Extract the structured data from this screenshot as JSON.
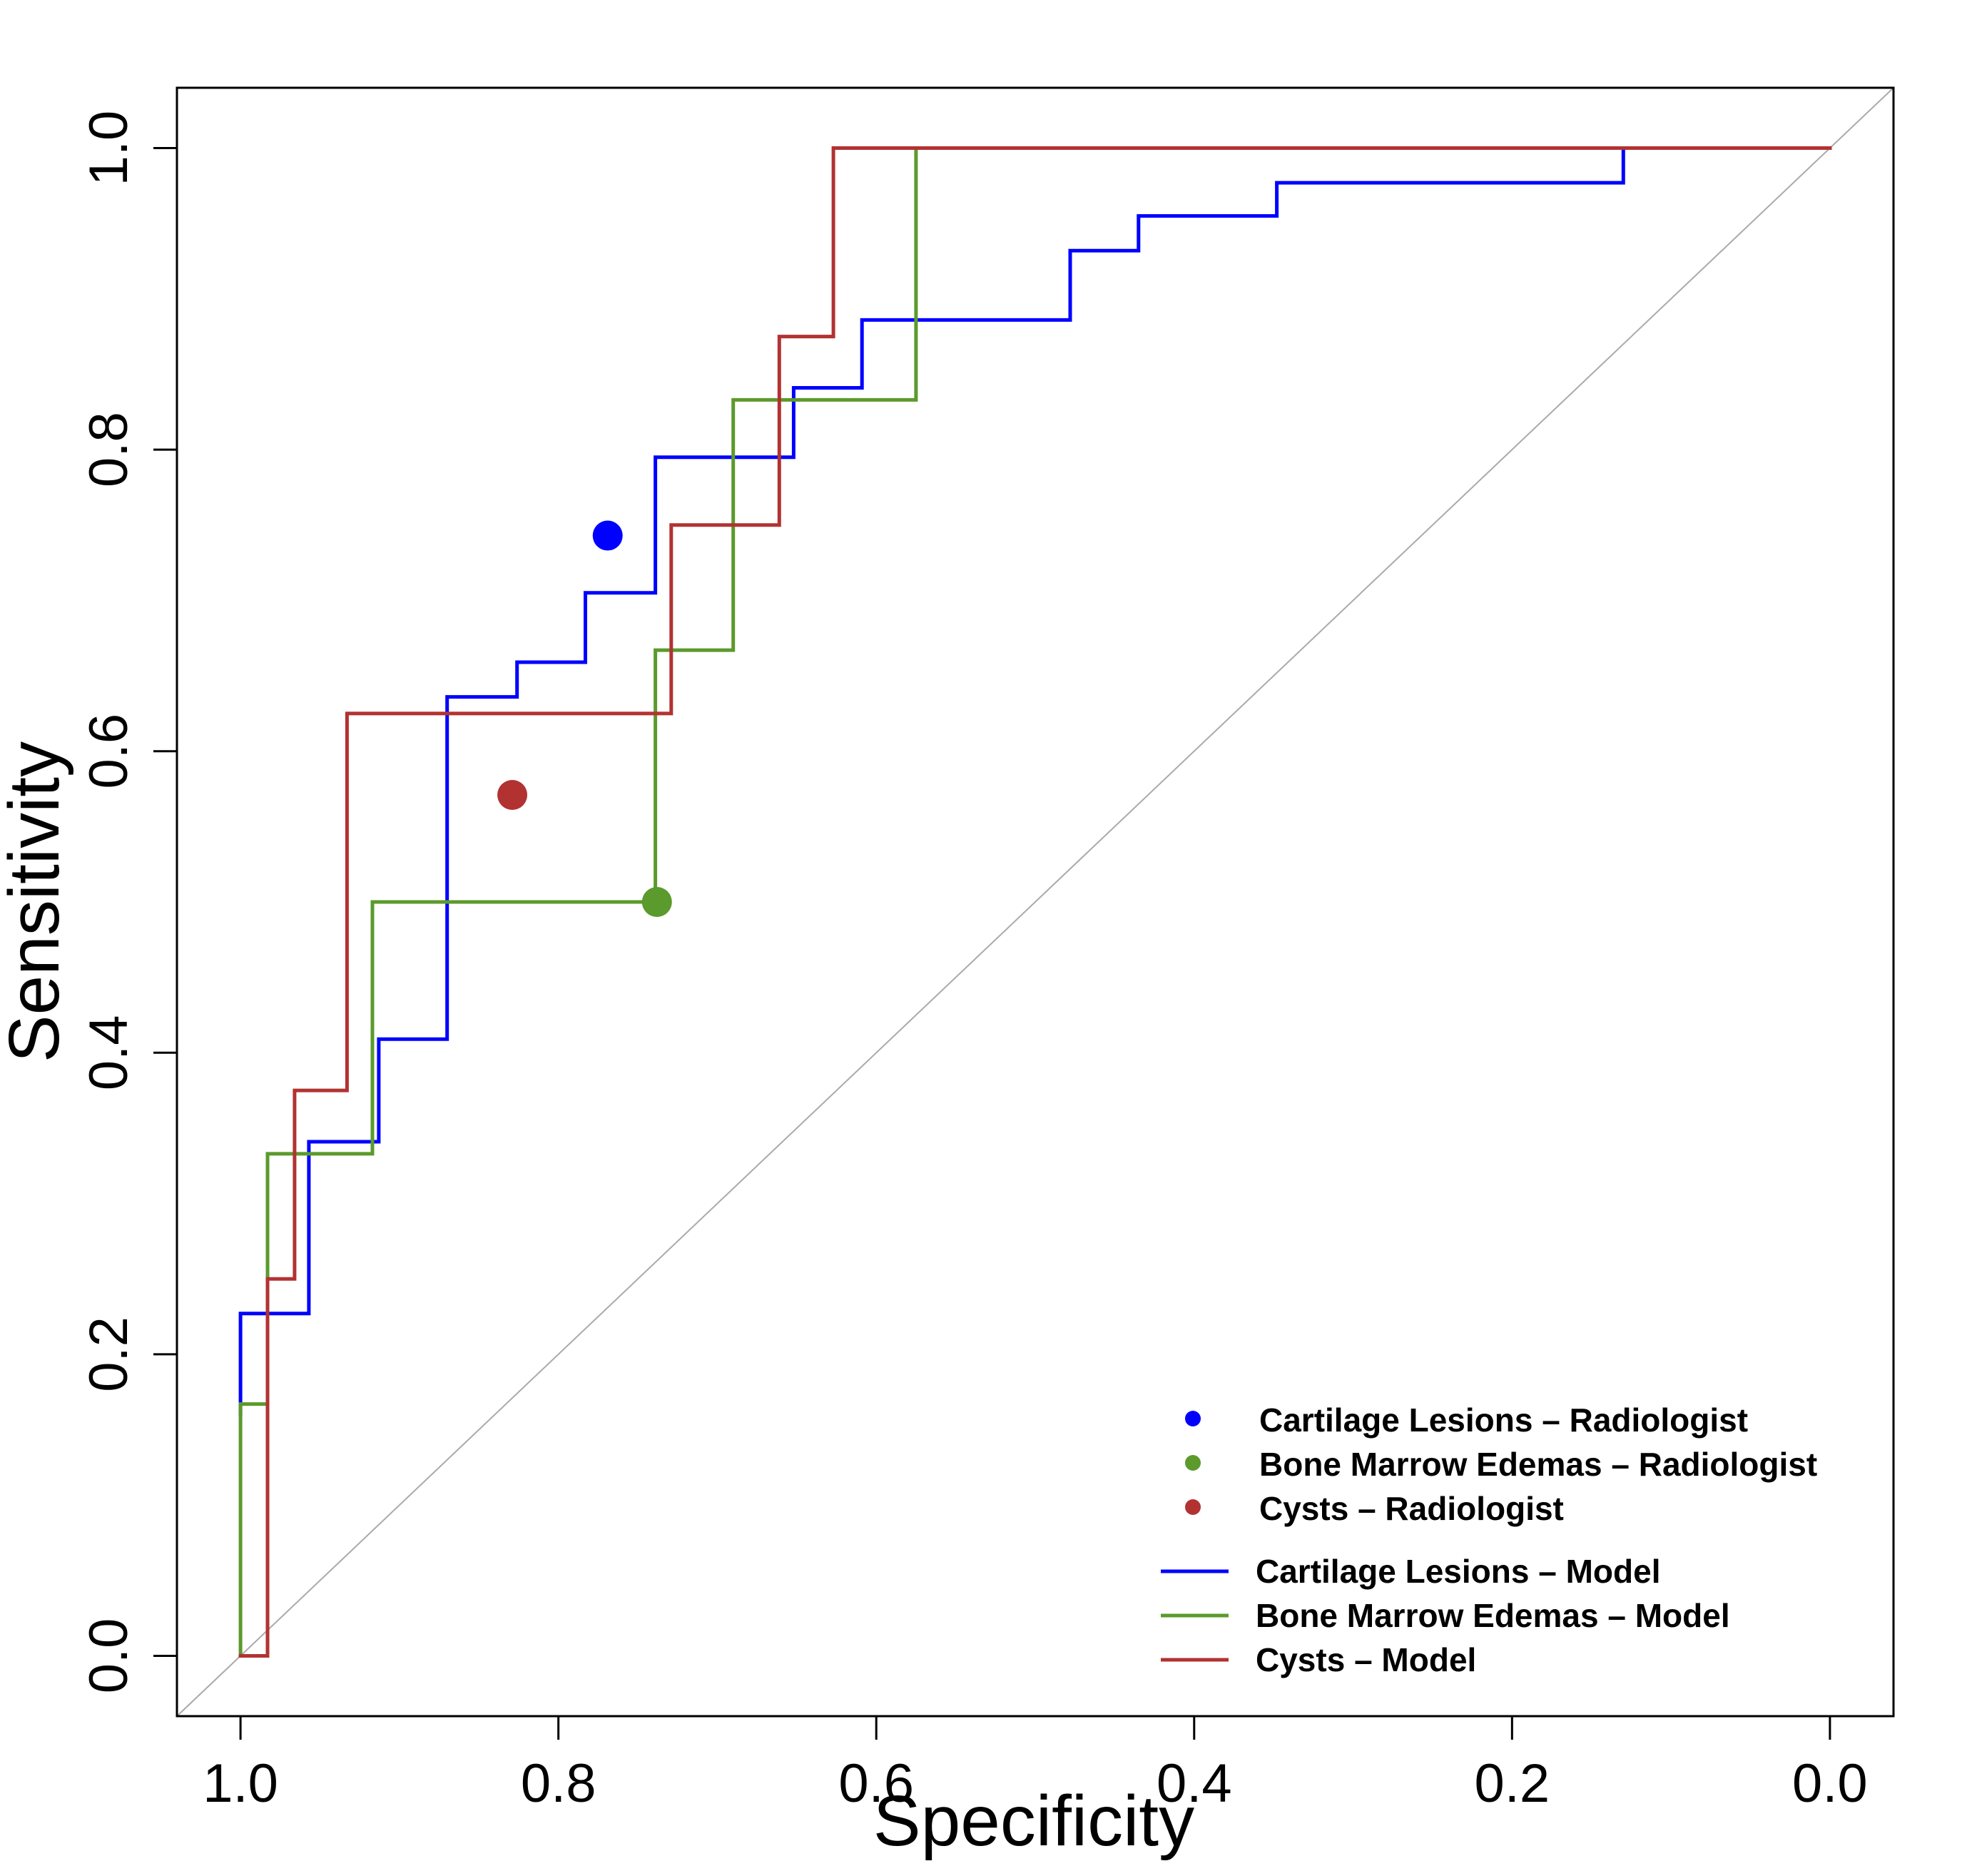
{
  "chart_data": {
    "type": "line",
    "title": "",
    "xlabel": "Specificity",
    "ylabel": "Sensitivity",
    "xlim": [
      1.04,
      -0.04
    ],
    "ylim": [
      -0.04,
      1.04
    ],
    "x_reversed": true,
    "x_ticks": [
      "1.0",
      "0.8",
      "0.6",
      "0.4",
      "0.2",
      "0.0"
    ],
    "x_tick_values": [
      1.0,
      0.8,
      0.6,
      0.4,
      0.2,
      0.0
    ],
    "y_ticks": [
      "0.0",
      "0.2",
      "0.4",
      "0.6",
      "0.8",
      "1.0"
    ],
    "y_tick_values": [
      0.0,
      0.2,
      0.4,
      0.6,
      0.8,
      1.0
    ],
    "grid": false,
    "reference_line": {
      "name": "chance",
      "color": "#aaaaaa",
      "points": [
        [
          1.04,
          -0.04
        ],
        [
          -0.04,
          1.04
        ]
      ]
    },
    "series": [
      {
        "name": "Cartilage Lesions – Model",
        "color": "#0000ff",
        "x": [
          1.0,
          1.0,
          0.957,
          0.957,
          0.913,
          0.913,
          0.87,
          0.87,
          0.826,
          0.826,
          0.783,
          0.783,
          0.739,
          0.739,
          0.652,
          0.652,
          0.609,
          0.609,
          0.478,
          0.478,
          0.435,
          0.435,
          0.348,
          0.348,
          0.13,
          0.13,
          0.0
        ],
        "y": [
          0.16,
          0.227,
          0.227,
          0.341,
          0.341,
          0.409,
          0.409,
          0.636,
          0.636,
          0.659,
          0.659,
          0.705,
          0.705,
          0.795,
          0.795,
          0.841,
          0.841,
          0.886,
          0.886,
          0.932,
          0.932,
          0.955,
          0.955,
          0.977,
          0.977,
          1.0,
          1.0
        ]
      },
      {
        "name": "Bone Marrow Edemas – Model",
        "color": "#5b9a2c",
        "x": [
          1.0,
          1.0,
          0.983,
          0.983,
          0.917,
          0.917,
          0.739,
          0.739,
          0.69,
          0.69,
          0.575,
          0.575,
          0.0
        ],
        "y": [
          0.0,
          0.167,
          0.167,
          0.333,
          0.333,
          0.5,
          0.5,
          0.667,
          0.667,
          0.833,
          0.833,
          1.0,
          1.0
        ]
      },
      {
        "name": "Cysts – Model",
        "color": "#b23232",
        "x": [
          1.0,
          0.983,
          0.983,
          0.966,
          0.966,
          0.933,
          0.933,
          0.729,
          0.729,
          0.661,
          0.661,
          0.627,
          0.627,
          0.0
        ],
        "y": [
          0.0,
          0.0,
          0.25,
          0.25,
          0.375,
          0.375,
          0.625,
          0.625,
          0.75,
          0.75,
          0.875,
          0.875,
          1.0,
          1.0
        ]
      }
    ],
    "points": [
      {
        "name": "Cartilage Lesions – Radiologist",
        "color": "#0000ff",
        "x": 0.769,
        "y": 0.743
      },
      {
        "name": "Bone Marrow Edemas – Radiologist",
        "color": "#5b9a2c",
        "x": 0.738,
        "y": 0.5
      },
      {
        "name": "Cysts – Radiologist",
        "color": "#b23232",
        "x": 0.829,
        "y": 0.571
      }
    ],
    "legend": {
      "placement": "bottom-right",
      "point_entries": [
        "Cartilage Lesions – Radiologist",
        "Bone Marrow Edemas – Radiologist",
        "Cysts – Radiologist"
      ],
      "line_entries": [
        "Cartilage Lesions – Model",
        "Bone Marrow Edemas – Model",
        "Cysts – Model"
      ]
    }
  }
}
